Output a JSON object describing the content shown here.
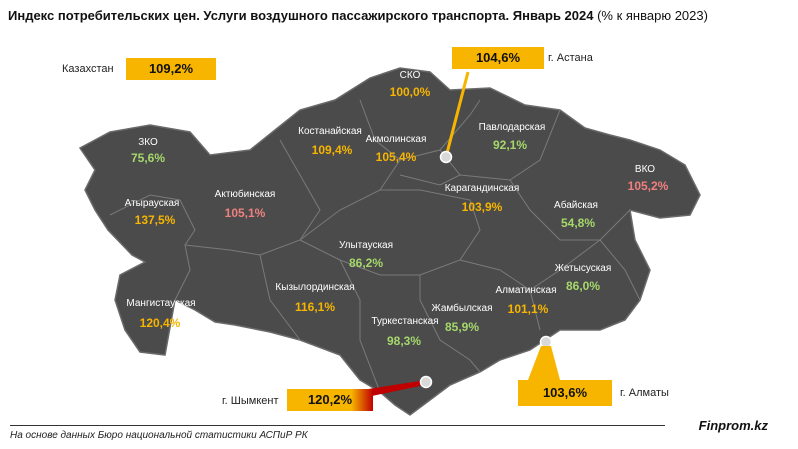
{
  "header": {
    "title_bold": "Индекс потребительских цен. Услуги воздушного пассажирского транспорта. Январь 2024",
    "title_normal": " (% к январю 2023)"
  },
  "kazakhstan": {
    "label": "Казахстан",
    "value": "109,2%"
  },
  "cities": {
    "astana": {
      "label": "г. Астана",
      "value": "104,6%"
    },
    "almaty": {
      "label": "г. Алматы",
      "value": "103,6%"
    },
    "shymkent": {
      "label": "г. Шымкент",
      "value": "120,2%"
    }
  },
  "regions": [
    {
      "name": "СКО",
      "value": "100,0%",
      "color": "#f7b500"
    },
    {
      "name": "Костанайская",
      "value": "109,4%",
      "color": "#f7b500"
    },
    {
      "name": "Акмолинская",
      "value": "105,4%",
      "color": "#f7b500"
    },
    {
      "name": "Павлодарская",
      "value": "92,1%",
      "color": "#a5d86b"
    },
    {
      "name": "ЗКО",
      "value": "75,6%",
      "color": "#a5d86b"
    },
    {
      "name": "ВКО",
      "value": "105,2%",
      "color": "#f08080"
    },
    {
      "name": "Актюбинская",
      "value": "105,1%",
      "color": "#f08080"
    },
    {
      "name": "Атырауская",
      "value": "137,5%",
      "color": "#f7b500"
    },
    {
      "name": "Карагандинская",
      "value": "103,9%",
      "color": "#f7b500"
    },
    {
      "name": "Абайская",
      "value": "54,8%",
      "color": "#a5d86b"
    },
    {
      "name": "Улытауская",
      "value": "86,2%",
      "color": "#a5d86b"
    },
    {
      "name": "Кызылординская",
      "value": "116,1%",
      "color": "#f7b500"
    },
    {
      "name": "Мангистауская",
      "value": "120,4%",
      "color": "#f7b500"
    },
    {
      "name": "Алматинская",
      "value": "101,1%",
      "color": "#f7b500"
    },
    {
      "name": "Жетысуская",
      "value": "86,0%",
      "color": "#a5d86b"
    },
    {
      "name": "Туркестанская",
      "value": "98,3%",
      "color": "#a5d86b"
    },
    {
      "name": "Жамбылская",
      "value": "85,9%",
      "color": "#a5d86b"
    }
  ],
  "footer": {
    "source": "На основе данных Бюро национальной статистики АСПиР РК",
    "brand": "Finprom.kz"
  }
}
